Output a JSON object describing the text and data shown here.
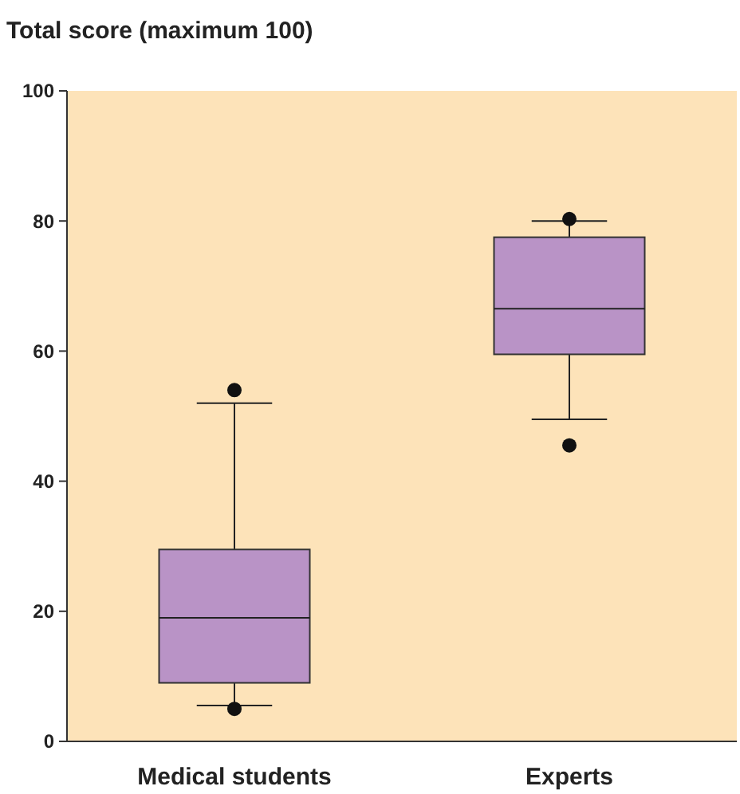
{
  "chart_data": {
    "type": "box",
    "title": "Total score (maximum 100)",
    "categories": [
      "Medical students",
      "Experts"
    ],
    "color": "#b993c6",
    "boxes": [
      {
        "low": 5.5,
        "q1": 9,
        "median": 19,
        "q3": 29.5,
        "high": 52,
        "outliers": [
          54,
          5
        ]
      },
      {
        "low": 49.5,
        "q1": 59.5,
        "median": 66.5,
        "q3": 77.5,
        "high": 80,
        "outliers": [
          80.3,
          45.5
        ]
      }
    ],
    "ylim": [
      0,
      100
    ],
    "yticks": [
      0,
      20,
      40,
      60,
      80,
      100
    ],
    "grid": false
  }
}
